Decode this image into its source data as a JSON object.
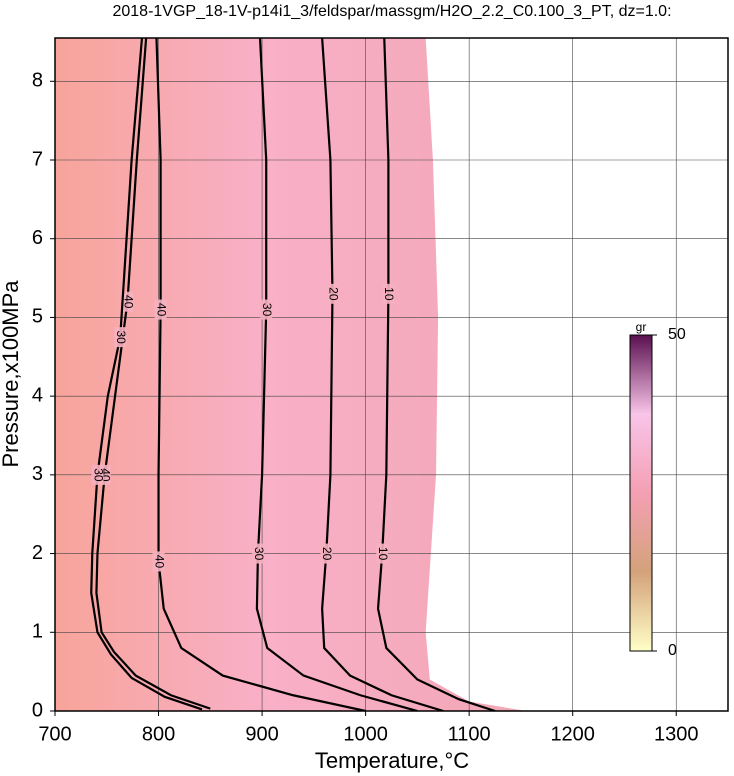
{
  "chart_data": {
    "type": "contour",
    "title": "2018-1VGP_18-1V-p14i1_3/feldspar/massgm/H2O_2.2_C0.100_3_PT, dz=1.0:",
    "x_label": "Temperature,°C",
    "y_label": "Pressure,x100MPa",
    "xlim": [
      700,
      1350
    ],
    "ylim": [
      0,
      8.55
    ],
    "xticks": [
      700,
      800,
      900,
      1000,
      1100,
      1200,
      1300
    ],
    "yticks": [
      0,
      1,
      2,
      3,
      4,
      5,
      6,
      7,
      8
    ],
    "grid": true,
    "field_colors": [
      "#f7a49a",
      "#f9b0c8",
      "#f3a8b8",
      "#f6a894",
      "#f5c898",
      "#f8f2a8"
    ],
    "extent": {
      "x": [
        700,
        1058,
        1065,
        1070,
        1068,
        1063,
        1058,
        1062,
        1100,
        1155,
        700
      ],
      "y": [
        8.55,
        8.55,
        7,
        5,
        3,
        2,
        1,
        0.4,
        0.12,
        0,
        0
      ]
    },
    "contours": [
      {
        "level": 10,
        "x": [
          1018,
          1022,
          1022,
          1020,
          1016,
          1012,
          1020,
          1050,
          1090,
          1125
        ],
        "y": [
          8.55,
          7,
          5.3,
          3,
          2,
          1.3,
          0.8,
          0.4,
          0.15,
          0
        ]
      },
      {
        "level": 20,
        "x": [
          958,
          966,
          968,
          966,
          962,
          958,
          960,
          985,
          1025,
          1075
        ],
        "y": [
          8.55,
          7,
          5.3,
          3,
          2,
          1.3,
          0.8,
          0.45,
          0.2,
          0
        ]
      },
      {
        "level": 30,
        "x": [
          898,
          904,
          904,
          900,
          896,
          895,
          905,
          940,
          995,
          1050
        ],
        "y": [
          8.55,
          7,
          5.1,
          3,
          2,
          1.3,
          0.8,
          0.45,
          0.2,
          0
        ]
      },
      {
        "level": 40,
        "x": [
          798,
          802,
          802,
          800,
          800,
          805,
          822,
          862,
          930,
          1000
        ],
        "y": [
          8.55,
          7,
          5.1,
          3,
          1.9,
          1.3,
          0.8,
          0.45,
          0.2,
          0
        ]
      },
      {
        "level": 40,
        "x": [
          788,
          779,
          770,
          758,
          748,
          741,
          740,
          745,
          757,
          778,
          812,
          850
        ],
        "y": [
          8.55,
          7,
          5.2,
          4,
          3,
          2,
          1.5,
          1.0,
          0.75,
          0.45,
          0.2,
          0.03
        ]
      },
      {
        "level": 30,
        "x": [
          784,
          774,
          763,
          751,
          741,
          736,
          735,
          741,
          754,
          774,
          806,
          842
        ],
        "y": [
          8.55,
          7,
          4.75,
          4,
          3,
          2,
          1.5,
          1.0,
          0.72,
          0.42,
          0.18,
          0.02
        ]
      }
    ],
    "colorbar": {
      "label": "gr",
      "lim": [
        0,
        50
      ],
      "ticks": [
        0,
        50
      ],
      "colors": [
        "#ffffc8",
        "#d4a27a",
        "#f4a0b4",
        "#f8c4e8",
        "#5a1050"
      ]
    }
  }
}
